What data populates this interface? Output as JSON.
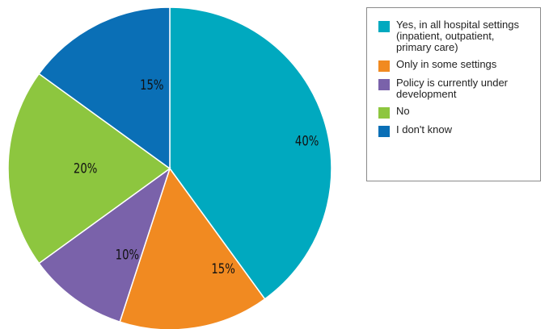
{
  "chart_data": {
    "type": "pie",
    "slices": [
      {
        "label": "Yes, in all hospital settings\n(inpatient, outpatient,\nprimary care)",
        "value": 40,
        "value_label": "40%",
        "color": "#00a9bf"
      },
      {
        "label": "Only in some settings",
        "value": 15,
        "value_label": "15%",
        "color": "#f18a21"
      },
      {
        "label": "Policy is currently under\ndevelopment",
        "value": 10,
        "value_label": "10%",
        "color": "#7a62aa"
      },
      {
        "label": "No",
        "value": 20,
        "value_label": "20%",
        "color": "#8dc63f"
      },
      {
        "label": "I don't know",
        "value": 15,
        "value_label": "15%",
        "color": "#0a6fb6"
      }
    ],
    "start": "12 o'clock",
    "direction": "clockwise",
    "legend_position": "right"
  }
}
